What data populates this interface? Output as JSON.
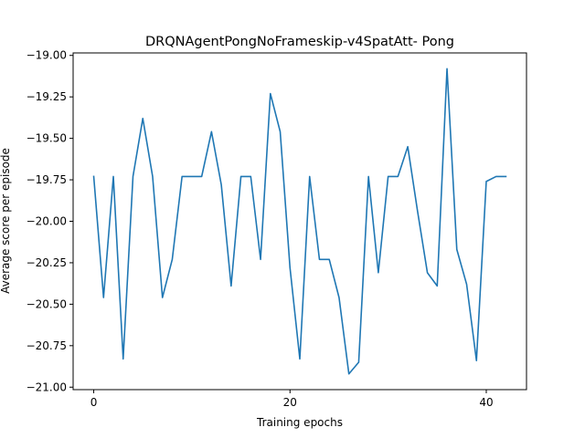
{
  "chart_data": {
    "type": "line",
    "title": "DRQNAgentPongNoFrameskip-v4SpatAtt- Pong",
    "xlabel": "Training epochs",
    "ylabel": "Average score per episode",
    "xlim": [
      -2.1,
      44.1
    ],
    "ylim": [
      -21.015,
      -18.985
    ],
    "xticks": [
      0,
      20,
      40
    ],
    "xtick_labels": [
      "0",
      "20",
      "40"
    ],
    "yticks": [
      -21.0,
      -20.75,
      -20.5,
      -20.25,
      -20.0,
      -19.75,
      -19.5,
      -19.25,
      -19.0
    ],
    "ytick_labels": [
      "−21.00",
      "−20.75",
      "−20.50",
      "−20.25",
      "−20.00",
      "−19.75",
      "−19.50",
      "−19.25",
      "−19.00"
    ],
    "grid": false,
    "line_color": "#1f77b4",
    "series": [
      {
        "x": [
          0,
          1,
          2,
          3,
          4,
          5,
          6,
          7,
          8,
          9,
          10,
          11,
          12,
          13,
          14,
          15,
          16,
          17,
          18,
          19,
          20,
          21,
          22,
          23,
          24,
          25,
          26,
          27,
          28,
          29,
          30,
          31,
          32,
          33,
          34,
          35,
          36,
          37,
          38,
          39,
          40,
          41,
          42
        ],
        "values": [
          -19.73,
          -20.46,
          -19.73,
          -20.83,
          -19.73,
          -19.38,
          -19.73,
          -20.46,
          -20.23,
          -19.73,
          -19.73,
          -19.73,
          -19.46,
          -19.78,
          -20.39,
          -19.73,
          -19.73,
          -20.23,
          -19.23,
          -19.46,
          -20.28,
          -20.83,
          -19.73,
          -20.23,
          -20.23,
          -20.46,
          -20.92,
          -20.85,
          -19.73,
          -20.31,
          -19.73,
          -19.73,
          -19.55,
          -19.94,
          -20.31,
          -20.39,
          -19.08,
          -20.17,
          -20.38,
          -20.84,
          -19.76,
          -19.73,
          -19.73
        ]
      }
    ]
  }
}
